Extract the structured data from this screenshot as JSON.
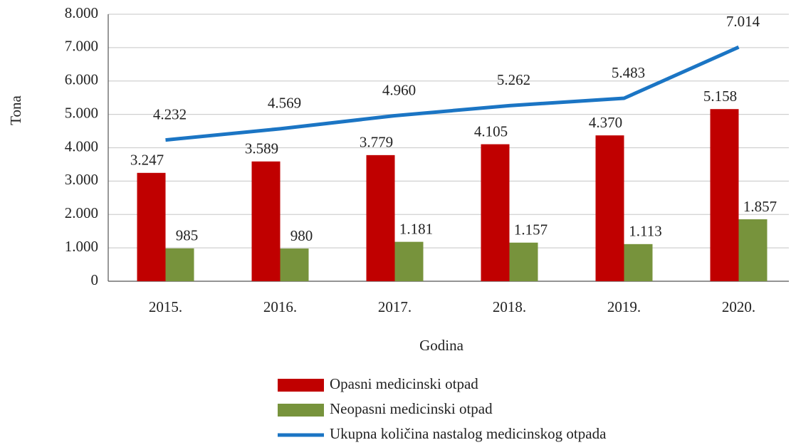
{
  "chart_data": {
    "type": "bar",
    "xlabel": "Godina",
    "ylabel": "Tona",
    "categories": [
      "2015.",
      "2016.",
      "2017.",
      "2018.",
      "2019.",
      "2020."
    ],
    "series": [
      {
        "name": "Opasni medicinski otpad",
        "type": "bar",
        "color": "#c00000",
        "values": [
          3247,
          3589,
          3779,
          4105,
          4370,
          5158
        ],
        "value_labels": [
          "3.247",
          "3.589",
          "3.779",
          "4.105",
          "4.370",
          "5.158"
        ]
      },
      {
        "name": "Neopasni medicinski otpad",
        "type": "bar",
        "color": "#77933c",
        "values": [
          985,
          980,
          1181,
          1157,
          1113,
          1857
        ],
        "value_labels": [
          "985",
          "980",
          "1.181",
          "1.157",
          "1.113",
          "1.857"
        ]
      },
      {
        "name": "Ukupna količina nastalog medicinskog otpada",
        "type": "line",
        "color": "#1b75c4",
        "values": [
          4232,
          4569,
          4960,
          5262,
          5483,
          7014
        ],
        "value_labels": [
          "4.232",
          "4.569",
          "4.960",
          "5.262",
          "5.483",
          "7.014"
        ]
      }
    ],
    "ylim": [
      0,
      8000
    ],
    "yticks": [
      0,
      {
        "value": 1000,
        "label": "1.000"
      },
      {
        "value": 2000,
        "label": "2.000"
      },
      {
        "value": 3000,
        "label": "3.000"
      },
      {
        "value": 4000,
        "label": "4.000"
      },
      {
        "value": 5000,
        "label": "5.000"
      },
      {
        "value": 6000,
        "label": "6.000"
      },
      {
        "value": 7000,
        "label": "7.000"
      },
      {
        "value": 8000,
        "label": "8.000"
      }
    ],
    "grid": true,
    "legend": "bottom"
  }
}
